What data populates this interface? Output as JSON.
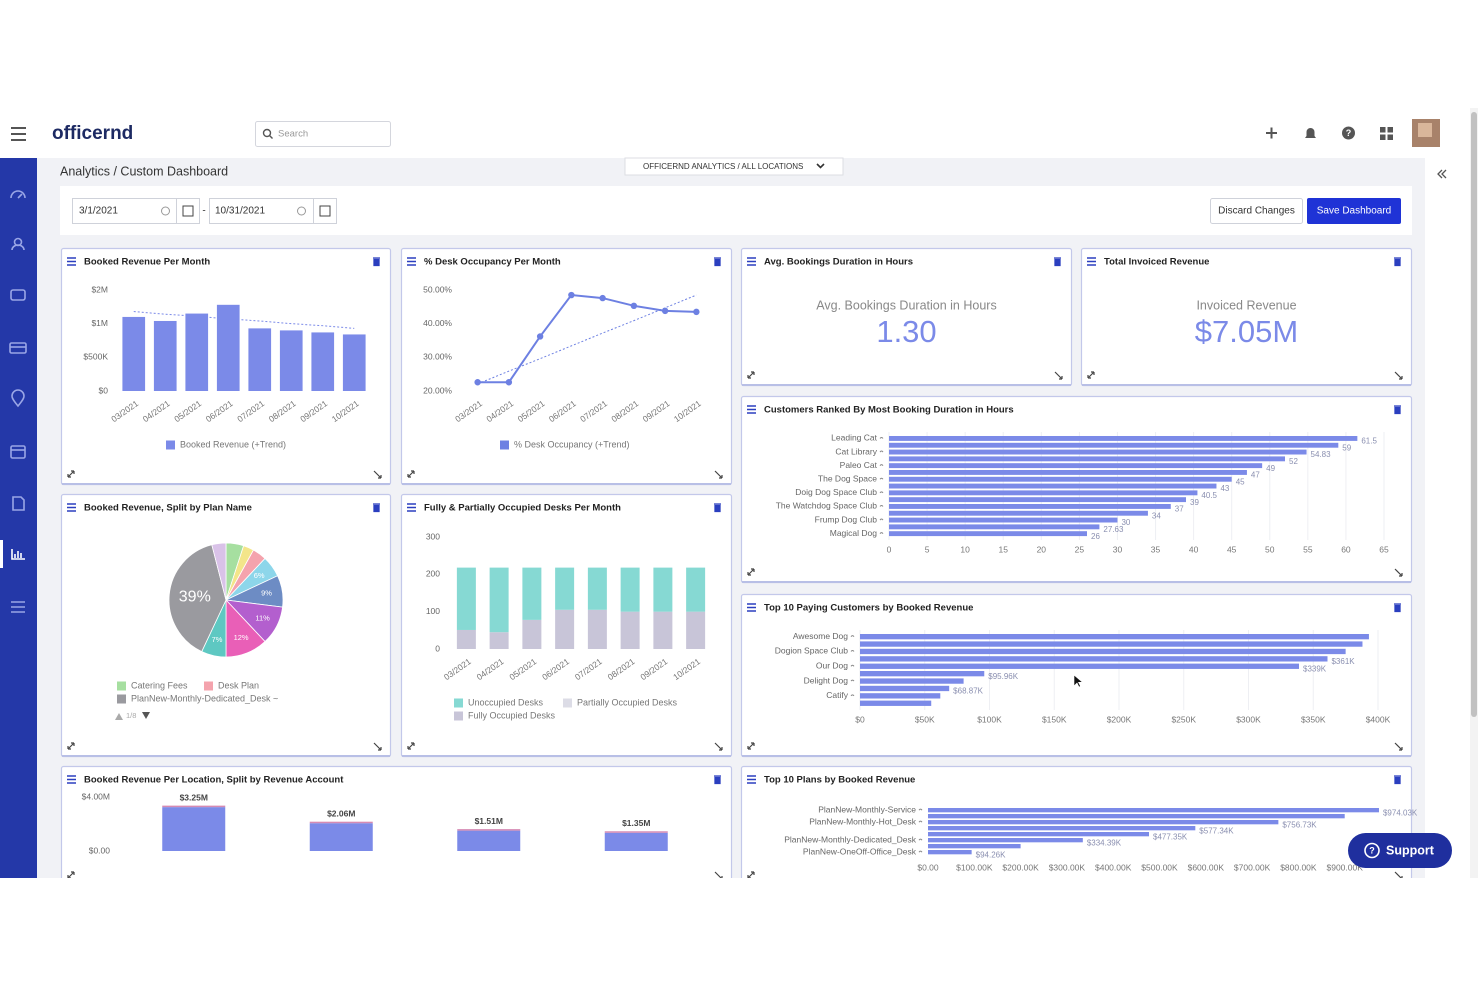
{
  "header": {
    "logo": "officernd",
    "search": "Search"
  },
  "breadcrumb": "Analytics / Custom Dashboard",
  "scope": "OFFICERND ANALYTICS  /  ALL LOCATIONS",
  "filters": {
    "start": "3/1/2021",
    "separator": "-",
    "end": "10/31/2021",
    "discard": "Discard Changes",
    "save": "Save Dashboard"
  },
  "support": "Support",
  "chart_data": [
    {
      "type": "bar",
      "title": "Booked Revenue Per Month",
      "categories": [
        "03/2021",
        "04/2021",
        "05/2021",
        "06/2021",
        "07/2021",
        "08/2021",
        "09/2021",
        "10/2021"
      ],
      "series": [
        {
          "name": "Booked Revenue (+Trend)",
          "color": "#7b8ae8",
          "values": [
            1100000,
            1040000,
            1150000,
            1280000,
            930000,
            900000,
            870000,
            840000
          ],
          "trend": [
            1180000,
            1140000,
            1110000,
            1070000,
            1040000,
            1000000,
            970000,
            930000
          ]
        }
      ],
      "ylim": [
        0,
        1500000
      ],
      "yticks": [
        {
          "value": 0,
          "label": "$0"
        },
        {
          "value": 500000,
          "label": "$500K"
        },
        {
          "value": 1000000,
          "label": "$1M"
        },
        {
          "value": 1500000,
          "label": "$2M"
        }
      ]
    },
    {
      "type": "line",
      "title": "% Desk Occupancy Per Month",
      "categories": [
        "03/2021",
        "04/2021",
        "05/2021",
        "06/2021",
        "07/2021",
        "08/2021",
        "09/2021",
        "10/2021"
      ],
      "series": [
        {
          "name": "% Desk Occupancy (+Trend)",
          "color": "#6d80e2",
          "values": [
            22.6,
            22.6,
            36.2,
            48.5,
            47.6,
            45.3,
            43.8,
            43.5
          ],
          "trend": [
            22.1,
            25.9,
            29.6,
            33.4,
            37.2,
            40.9,
            44.7,
            48.5
          ]
        }
      ],
      "ylim": [
        20,
        50
      ],
      "yticks": [
        {
          "value": 20,
          "label": "20.00%"
        },
        {
          "value": 30,
          "label": "30.00%"
        },
        {
          "value": 40,
          "label": "40.00%"
        },
        {
          "value": 50,
          "label": "50.00%"
        }
      ]
    },
    {
      "type": "kpi",
      "title": "Avg. Bookings Duration in Hours",
      "label": "Avg. Bookings Duration in Hours",
      "value": "1.30"
    },
    {
      "type": "kpi",
      "title": "Total Invoiced Revenue",
      "label": "Invoiced Revenue",
      "value": "$7.05M"
    },
    {
      "type": "hbar",
      "title": "Customers Ranked By Most Booking Duration in Hours",
      "categories": [
        "Leading Cat",
        null,
        "Cat Library",
        null,
        "Paleo Cat",
        null,
        "The Dog Space",
        null,
        "Doig Dog Space Club",
        null,
        "The Watchdog Space Club",
        null,
        "Frump Dog Club",
        null,
        "Magical Dog"
      ],
      "values": [
        61.5,
        59,
        54.83,
        52,
        49,
        47,
        45,
        43,
        40.5,
        39,
        37,
        34,
        30,
        27.63,
        26
      ],
      "color": "#7b8ae8",
      "xlim": [
        0,
        65
      ],
      "xticks": [
        0,
        5,
        10,
        15,
        20,
        25,
        30,
        35,
        40,
        45,
        50,
        55,
        60,
        65
      ],
      "grid": true
    },
    {
      "type": "pie",
      "title": "Booked Revenue, Split by Plan Name",
      "categories": [
        "Catering Fees",
        null,
        "Desk Plan",
        null,
        null,
        null,
        null,
        null,
        "PlanNew-Monthly-Dedicated_Desk ~",
        null
      ],
      "values": [
        5,
        3,
        4,
        6,
        9,
        11,
        12,
        7,
        39,
        4
      ],
      "value_labels": [
        null,
        null,
        null,
        "6%",
        "9%",
        "11%",
        "12%",
        "7%",
        "39%",
        null
      ],
      "colors": [
        "#a6dfa0",
        "#f3e58a",
        "#f4a3ad",
        "#8dd6ea",
        "#6d8cc4",
        "#b35fce",
        "#e95fb7",
        "#5ec8c2",
        "#9a9a9f",
        "#d9c2e8"
      ],
      "legend_page": "1/8"
    },
    {
      "type": "bar",
      "title": "Fully & Partially Occupied Desks Per Month",
      "stacked": true,
      "categories": [
        "03/2021",
        "04/2021",
        "05/2021",
        "06/2021",
        "07/2021",
        "08/2021",
        "09/2021",
        "10/2021"
      ],
      "series": [
        {
          "name": "Unoccupied Desks",
          "color": "#86d9d3",
          "values": [
            167,
            173,
            140,
            113,
            113,
            118,
            118,
            118
          ]
        },
        {
          "name": "Partially Occupied Desks",
          "color": "#dcdce6",
          "values": [
            0,
            0,
            0,
            0,
            0,
            0,
            0,
            0
          ]
        },
        {
          "name": "Fully Occupied Desks",
          "color": "#c8c5d8",
          "values": [
            51,
            45,
            78,
            105,
            105,
            100,
            100,
            100
          ]
        }
      ],
      "ylim": [
        0,
        300
      ],
      "yticks": [
        0,
        100,
        200,
        300
      ]
    },
    {
      "type": "hbar",
      "title": "Top 10 Paying Customers by Booked Revenue",
      "categories": [
        "Awesome Dog",
        null,
        "Dogion Space Club",
        null,
        "Our Dog",
        null,
        "Delight Dog",
        null,
        "Catify",
        null
      ],
      "values": [
        393000,
        388000,
        375000,
        361000,
        339000,
        95960,
        80000,
        68870,
        62000,
        55000
      ],
      "value_labels": [
        null,
        null,
        null,
        "$361K",
        "$339K",
        "$95.96K",
        null,
        "$68.87K",
        null,
        null
      ],
      "color": "#7b8ae8",
      "xlim": [
        0,
        400000
      ],
      "xticks": [
        {
          "value": 0,
          "label": "$0"
        },
        {
          "value": 50000,
          "label": "$50K"
        },
        {
          "value": 100000,
          "label": "$100K"
        },
        {
          "value": 150000,
          "label": "$150K"
        },
        {
          "value": 200000,
          "label": "$200K"
        },
        {
          "value": 250000,
          "label": "$250K"
        },
        {
          "value": 300000,
          "label": "$300K"
        },
        {
          "value": 350000,
          "label": "$350K"
        },
        {
          "value": 400000,
          "label": "$400K"
        }
      ],
      "grid": true
    },
    {
      "type": "bar",
      "title": "Booked Revenue Per Location, Split by Revenue Account",
      "values": [
        3250000,
        2060000,
        1510000,
        1350000
      ],
      "value_labels": [
        "$3.25M",
        "$2.06M",
        "$1.51M",
        "$1.35M"
      ],
      "color": "#7b8ae8",
      "ylim": [
        0,
        4000000
      ],
      "yticks": [
        {
          "value": 0,
          "label": "$0.00"
        },
        {
          "value": 4000000,
          "label": "$4.00M"
        }
      ]
    },
    {
      "type": "hbar",
      "title": "Top 10 Plans by Booked Revenue",
      "categories": [
        "PlanNew-Monthly-Service",
        null,
        "PlanNew-Monthly-Hot_Desk",
        null,
        null,
        "PlanNew-Monthly-Dedicated_Desk",
        null,
        "PlanNew-OneOff-Office_Desk"
      ],
      "values": [
        974030,
        900000,
        756730,
        577340,
        477350,
        334390,
        200000,
        94260
      ],
      "value_labels": [
        "$974.03K",
        null,
        "$756.73K",
        "$577.34K",
        "$477.35K",
        "$334.39K",
        null,
        "$94.26K"
      ],
      "color": "#7b8ae8",
      "xlim": [
        0,
        1000000
      ],
      "xticks": [
        {
          "value": 0,
          "label": "$0.00"
        },
        {
          "value": 100000,
          "label": "$100.00K"
        },
        {
          "value": 200000,
          "label": "$200.00K"
        },
        {
          "value": 300000,
          "label": "$300.00K"
        },
        {
          "value": 400000,
          "label": "$400.00K"
        },
        {
          "value": 500000,
          "label": "$500.00K"
        },
        {
          "value": 600000,
          "label": "$600.00K"
        },
        {
          "value": 700000,
          "label": "$700.00K"
        },
        {
          "value": 800000,
          "label": "$800.00K"
        },
        {
          "value": 900000,
          "label": "$900.00K"
        }
      ]
    }
  ]
}
